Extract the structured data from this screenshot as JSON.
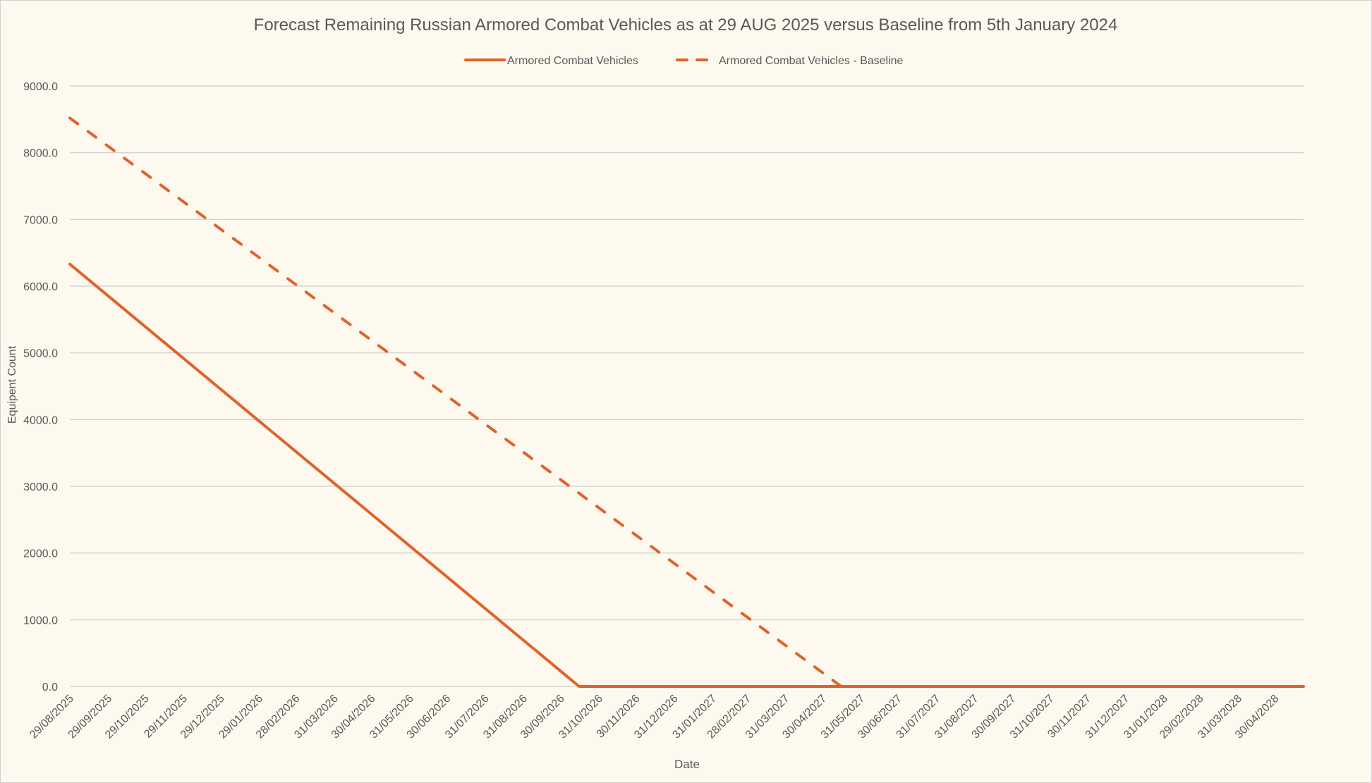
{
  "chart_data": {
    "type": "line",
    "title": "Forecast Remaining Russian Armored Combat Vehicles as at 29 AUG 2025 versus Baseline from 5th January 2024",
    "xlabel": "Date",
    "ylabel": "Equipent Count",
    "ylim": [
      0,
      9000
    ],
    "yticks": [
      "0.0",
      "1000.0",
      "2000.0",
      "3000.0",
      "4000.0",
      "5000.0",
      "6000.0",
      "7000.0",
      "8000.0",
      "9000.0"
    ],
    "xlim": [
      "2025-08-29",
      "2028-05-23"
    ],
    "xticks": [
      "29/08/2025",
      "29/09/2025",
      "29/10/2025",
      "29/11/2025",
      "29/12/2025",
      "29/01/2026",
      "28/02/2026",
      "31/03/2026",
      "30/04/2026",
      "31/05/2026",
      "30/06/2026",
      "31/07/2026",
      "31/08/2026",
      "30/09/2026",
      "31/10/2026",
      "30/11/2026",
      "31/12/2026",
      "31/01/2027",
      "28/02/2027",
      "31/03/2027",
      "30/04/2027",
      "31/05/2027",
      "30/06/2027",
      "31/07/2027",
      "31/08/2027",
      "30/09/2027",
      "31/10/2027",
      "30/11/2027",
      "31/12/2027",
      "31/01/2028",
      "29/02/2028",
      "31/03/2028",
      "30/04/2028"
    ],
    "grid": "horizontal",
    "legend_position": "top",
    "series": [
      {
        "name": "Armored Combat Vehicles",
        "style": "solid",
        "color": "#e0622a",
        "points": [
          [
            "2025-08-29",
            6330
          ],
          [
            "2026-10-15",
            0
          ],
          [
            "2028-05-23",
            0
          ]
        ]
      },
      {
        "name": "Armored Combat Vehicles - Baseline",
        "style": "dashed",
        "color": "#e0622a",
        "points": [
          [
            "2025-08-29",
            8520
          ],
          [
            "2027-05-15",
            0
          ]
        ]
      }
    ]
  }
}
